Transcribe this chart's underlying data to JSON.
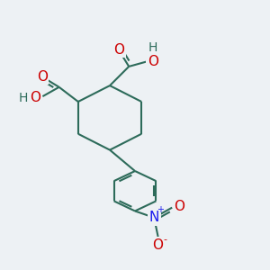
{
  "bg_color": "#edf1f4",
  "bond_color": "#2d6b5a",
  "bond_width": 1.5,
  "atom_colors": {
    "O": "#cc0000",
    "N": "#1a1aee",
    "H": "#2d6b5a",
    "C": "#2d6b5a"
  },
  "font_size": 10,
  "figsize": [
    3.0,
    3.0
  ],
  "dpi": 100,
  "xlim": [
    0,
    10
  ],
  "ylim": [
    0,
    10
  ]
}
